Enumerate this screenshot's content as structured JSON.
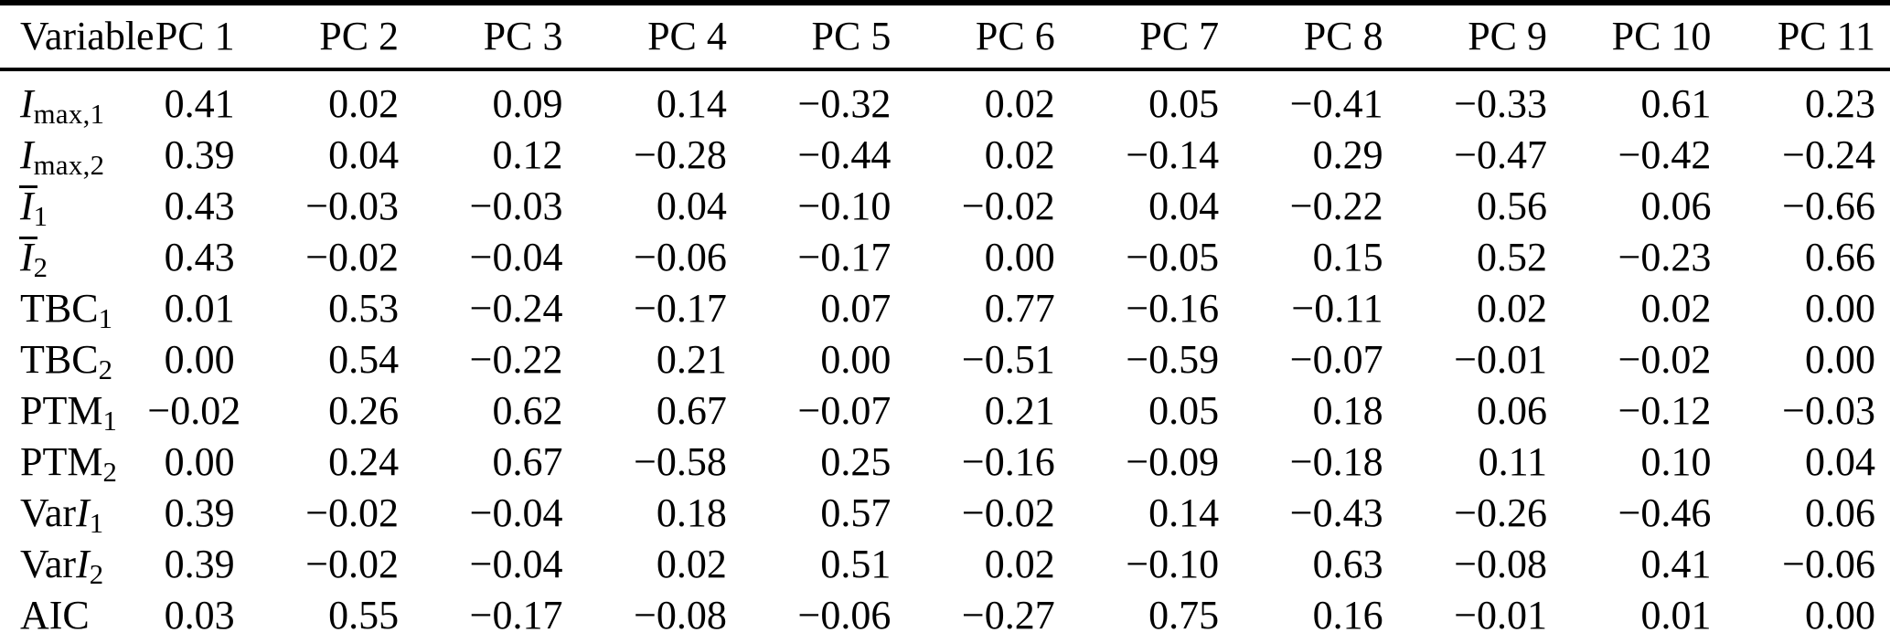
{
  "colors": {
    "text": "#000000",
    "background": "#ffffff",
    "rule": "#000000"
  },
  "table": {
    "columns": [
      "Variable",
      "PC 1",
      "PC 2",
      "PC 3",
      "PC 4",
      "PC 5",
      "PC 6",
      "PC 7",
      "PC 8",
      "PC 9",
      "PC 10",
      "PC 11"
    ],
    "rows": [
      {
        "label_plain": "Imax,1",
        "label_parts": [
          {
            "text": "I",
            "style": "italic"
          },
          {
            "text": "max,1",
            "style": "sub"
          }
        ],
        "values": [
          "0.41",
          "0.02",
          "0.09",
          "0.14",
          "−0.32",
          "0.02",
          "0.05",
          "−0.41",
          "−0.33",
          "0.61",
          "0.23"
        ]
      },
      {
        "label_plain": "Imax,2",
        "label_parts": [
          {
            "text": "I",
            "style": "italic"
          },
          {
            "text": "max,2",
            "style": "sub"
          }
        ],
        "values": [
          "0.39",
          "0.04",
          "0.12",
          "−0.28",
          "−0.44",
          "0.02",
          "−0.14",
          "0.29",
          "−0.47",
          "−0.42",
          "−0.24"
        ]
      },
      {
        "label_plain": "Ī1",
        "label_parts": [
          {
            "text": "I",
            "style": "italic overline"
          },
          {
            "text": "1",
            "style": "sub"
          }
        ],
        "values": [
          "0.43",
          "−0.03",
          "−0.03",
          "0.04",
          "−0.10",
          "−0.02",
          "0.04",
          "−0.22",
          "0.56",
          "0.06",
          "−0.66"
        ]
      },
      {
        "label_plain": "Ī2",
        "label_parts": [
          {
            "text": "I",
            "style": "italic overline"
          },
          {
            "text": "2",
            "style": "sub"
          }
        ],
        "values": [
          "0.43",
          "−0.02",
          "−0.04",
          "−0.06",
          "−0.17",
          "0.00",
          "−0.05",
          "0.15",
          "0.52",
          "−0.23",
          "0.66"
        ]
      },
      {
        "label_plain": "TBC1",
        "label_parts": [
          {
            "text": "TBC",
            "style": ""
          },
          {
            "text": "1",
            "style": "sub"
          }
        ],
        "values": [
          "0.01",
          "0.53",
          "−0.24",
          "−0.17",
          "0.07",
          "0.77",
          "−0.16",
          "−0.11",
          "0.02",
          "0.02",
          "0.00"
        ]
      },
      {
        "label_plain": "TBC2",
        "label_parts": [
          {
            "text": "TBC",
            "style": ""
          },
          {
            "text": "2",
            "style": "sub"
          }
        ],
        "values": [
          "0.00",
          "0.54",
          "−0.22",
          "0.21",
          "0.00",
          "−0.51",
          "−0.59",
          "−0.07",
          "−0.01",
          "−0.02",
          "0.00"
        ]
      },
      {
        "label_plain": "PTM1",
        "label_parts": [
          {
            "text": "PTM",
            "style": ""
          },
          {
            "text": "1",
            "style": "sub"
          }
        ],
        "values": [
          "−0.02",
          "0.26",
          "0.62",
          "0.67",
          "−0.07",
          "0.21",
          "0.05",
          "0.18",
          "0.06",
          "−0.12",
          "−0.03"
        ]
      },
      {
        "label_plain": "PTM2",
        "label_parts": [
          {
            "text": "PTM",
            "style": ""
          },
          {
            "text": "2",
            "style": "sub"
          }
        ],
        "values": [
          "0.00",
          "0.24",
          "0.67",
          "−0.58",
          "0.25",
          "−0.16",
          "−0.09",
          "−0.18",
          "0.11",
          "0.10",
          "0.04"
        ]
      },
      {
        "label_plain": "VarI1",
        "label_parts": [
          {
            "text": "Var",
            "style": ""
          },
          {
            "text": "I",
            "style": "italic"
          },
          {
            "text": "1",
            "style": "sub"
          }
        ],
        "values": [
          "0.39",
          "−0.02",
          "−0.04",
          "0.18",
          "0.57",
          "−0.02",
          "0.14",
          "−0.43",
          "−0.26",
          "−0.46",
          "0.06"
        ]
      },
      {
        "label_plain": "VarI2",
        "label_parts": [
          {
            "text": "Var",
            "style": ""
          },
          {
            "text": "I",
            "style": "italic"
          },
          {
            "text": "2",
            "style": "sub"
          }
        ],
        "values": [
          "0.39",
          "−0.02",
          "−0.04",
          "0.02",
          "0.51",
          "0.02",
          "−0.10",
          "0.63",
          "−0.08",
          "0.41",
          "−0.06"
        ]
      },
      {
        "label_plain": "AIC",
        "label_parts": [
          {
            "text": "AIC",
            "style": ""
          }
        ],
        "values": [
          "0.03",
          "0.55",
          "−0.17",
          "−0.08",
          "−0.06",
          "−0.27",
          "0.75",
          "0.16",
          "−0.01",
          "0.01",
          "0.00"
        ]
      }
    ]
  }
}
